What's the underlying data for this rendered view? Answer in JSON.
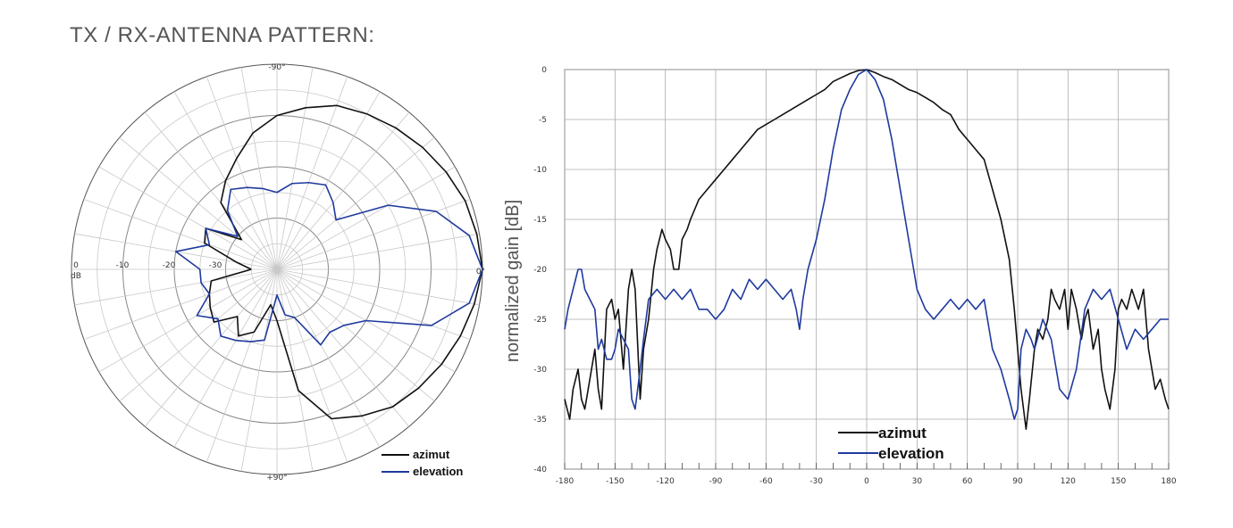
{
  "page": {
    "title": "TX / RX-ANTENNA PATTERN:"
  },
  "chart_data": [
    {
      "type": "polar",
      "angle_labels": {
        "top": "-90°",
        "right": "0°",
        "bottom": "+90°"
      },
      "radial_labels": [
        "0",
        "-10",
        "-20",
        "-30"
      ],
      "radial_unit": "dB",
      "rlim": [
        -40,
        0
      ],
      "grid": true,
      "legend": {
        "position": "bottom-right",
        "entries": [
          "azimut",
          "elevation"
        ]
      },
      "series": [
        {
          "name": "azimut",
          "color": "#111111",
          "angles_deg": [
            -180,
            -170,
            -160,
            -150,
            -140,
            -130,
            -120,
            -110,
            -100,
            -90,
            -80,
            -70,
            -60,
            -50,
            -40,
            -30,
            -20,
            -10,
            0,
            10,
            20,
            30,
            40,
            50,
            60,
            70,
            80,
            90,
            100,
            110,
            120,
            130,
            140,
            150,
            160,
            170,
            180
          ],
          "values_db": [
            -35,
            -32,
            -25,
            -24,
            -31,
            -23,
            -20,
            -17,
            -13,
            -10,
            -8,
            -6,
            -5,
            -4,
            -3,
            -2,
            -1,
            -0.5,
            0,
            -1,
            -2,
            -3,
            -4,
            -5,
            -7,
            -9,
            -16,
            -30,
            -33,
            -27,
            -25,
            -28,
            -24,
            -25,
            -26,
            -27,
            -35
          ]
        },
        {
          "name": "elevation",
          "color": "#1f3a9e",
          "angles_deg": [
            -180,
            -170,
            -160,
            -150,
            -140,
            -130,
            -120,
            -110,
            -100,
            -90,
            -80,
            -70,
            -60,
            -50,
            -40,
            -30,
            -20,
            -10,
            0,
            10,
            20,
            30,
            40,
            50,
            60,
            70,
            80,
            90,
            100,
            110,
            120,
            130,
            140,
            150,
            160,
            170,
            180
          ],
          "values_db": [
            -25,
            -20,
            -26,
            -24,
            -30,
            -25,
            -22,
            -23,
            -24,
            -25,
            -23,
            -22,
            -21,
            -23,
            -25,
            -15,
            -7,
            -2,
            0,
            -2,
            -8,
            -20,
            -23,
            -24,
            -23,
            -30,
            -31,
            -35,
            -26,
            -25,
            -24,
            -23,
            -25,
            -22,
            -26,
            -25,
            -25
          ]
        }
      ]
    },
    {
      "type": "line",
      "ylabel": "normalized gain [dB]",
      "xlabel": "",
      "xlim": [
        -180,
        180
      ],
      "ylim": [
        -40,
        0
      ],
      "x_ticks": [
        -180,
        -150,
        -120,
        -90,
        -60,
        -30,
        0,
        30,
        60,
        90,
        120,
        150,
        180
      ],
      "y_ticks": [
        0,
        -5,
        -10,
        -15,
        -20,
        -25,
        -30,
        -35,
        -40
      ],
      "grid": true,
      "legend": {
        "position": "bottom-center",
        "entries": [
          "azimut",
          "elevation"
        ]
      },
      "series": [
        {
          "name": "azimut",
          "color": "#111111",
          "x": [
            -180,
            -177,
            -175,
            -172,
            -170,
            -168,
            -165,
            -162,
            -160,
            -158,
            -155,
            -152,
            -150,
            -148,
            -145,
            -142,
            -140,
            -138,
            -135,
            -133,
            -130,
            -127,
            -125,
            -122,
            -120,
            -117,
            -115,
            -112,
            -110,
            -107,
            -105,
            -100,
            -95,
            -90,
            -85,
            -80,
            -75,
            -70,
            -65,
            -60,
            -55,
            -50,
            -45,
            -40,
            -35,
            -30,
            -25,
            -20,
            -15,
            -10,
            -5,
            0,
            5,
            10,
            15,
            20,
            25,
            30,
            35,
            40,
            45,
            50,
            55,
            60,
            65,
            70,
            75,
            80,
            85,
            88,
            90,
            92,
            95,
            97,
            100,
            102,
            105,
            108,
            110,
            112,
            115,
            118,
            120,
            122,
            125,
            128,
            130,
            132,
            135,
            138,
            140,
            142,
            145,
            148,
            150,
            152,
            155,
            158,
            160,
            162,
            165,
            168,
            170,
            172,
            175,
            178,
            180
          ],
          "y": [
            -33,
            -35,
            -32,
            -30,
            -33,
            -34,
            -31,
            -28,
            -32,
            -34,
            -24,
            -23,
            -25,
            -24,
            -30,
            -22,
            -20,
            -22,
            -33,
            -28,
            -25,
            -20,
            -18,
            -16,
            -17,
            -18,
            -20,
            -20,
            -17,
            -16,
            -15,
            -13,
            -12,
            -11,
            -10,
            -9,
            -8,
            -7,
            -6,
            -5.5,
            -5,
            -4.5,
            -4,
            -3.5,
            -3,
            -2.5,
            -2,
            -1.2,
            -0.8,
            -0.4,
            -0.1,
            0,
            -0.3,
            -0.7,
            -1,
            -1.5,
            -2,
            -2.3,
            -2.8,
            -3.3,
            -4,
            -4.5,
            -6,
            -7,
            -8,
            -9,
            -12,
            -15,
            -19,
            -24,
            -28,
            -32,
            -36,
            -33,
            -28,
            -26,
            -27,
            -25,
            -22,
            -23,
            -24,
            -22,
            -26,
            -22,
            -24,
            -27,
            -25,
            -24,
            -28,
            -26,
            -30,
            -32,
            -34,
            -30,
            -24,
            -23,
            -24,
            -22,
            -23,
            -24,
            -22,
            -28,
            -30,
            -32,
            -31,
            -33,
            -34
          ]
        },
        {
          "name": "elevation",
          "color": "#1f3a9e",
          "x": [
            -180,
            -178,
            -175,
            -172,
            -170,
            -168,
            -165,
            -162,
            -160,
            -158,
            -155,
            -152,
            -150,
            -148,
            -145,
            -142,
            -140,
            -138,
            -135,
            -133,
            -130,
            -125,
            -120,
            -115,
            -110,
            -105,
            -100,
            -95,
            -90,
            -85,
            -80,
            -75,
            -70,
            -65,
            -60,
            -55,
            -50,
            -45,
            -42,
            -40,
            -38,
            -35,
            -30,
            -25,
            -20,
            -15,
            -10,
            -5,
            0,
            5,
            10,
            15,
            20,
            25,
            30,
            35,
            40,
            45,
            50,
            55,
            60,
            65,
            70,
            75,
            80,
            85,
            88,
            90,
            92,
            95,
            98,
            100,
            105,
            110,
            115,
            120,
            125,
            130,
            135,
            140,
            145,
            150,
            155,
            160,
            165,
            170,
            175,
            180
          ],
          "y": [
            -26,
            -24,
            -22,
            -20,
            -20,
            -22,
            -23,
            -24,
            -28,
            -27,
            -29,
            -29,
            -28,
            -26,
            -27,
            -28,
            -33,
            -34,
            -30,
            -27,
            -23,
            -22,
            -23,
            -22,
            -23,
            -22,
            -24,
            -24,
            -25,
            -24,
            -22,
            -23,
            -21,
            -22,
            -21,
            -22,
            -23,
            -22,
            -24,
            -26,
            -23,
            -20,
            -17,
            -13,
            -8,
            -4,
            -2,
            -0.5,
            0,
            -1,
            -3,
            -7,
            -12,
            -17,
            -22,
            -24,
            -25,
            -24,
            -23,
            -24,
            -23,
            -24,
            -23,
            -28,
            -30,
            -33,
            -35,
            -34,
            -28,
            -26,
            -27,
            -28,
            -25,
            -27,
            -32,
            -33,
            -30,
            -24,
            -22,
            -23,
            -22,
            -25,
            -28,
            -26,
            -27,
            -26,
            -25,
            -25
          ]
        }
      ]
    }
  ]
}
